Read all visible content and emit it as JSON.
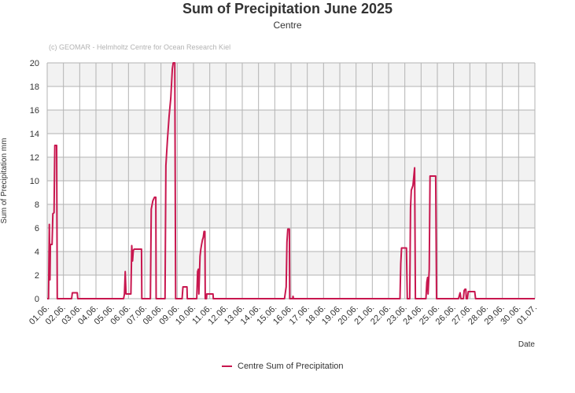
{
  "title": "Sum of Precipitation June 2025",
  "subtitle": "Centre",
  "copyright": "(c) GEOMAR - Helmholtz Centre for Ocean Research Kiel",
  "colors": {
    "series": "#c8174f",
    "band": "#f2f2f2",
    "grid": "#b3b3b3",
    "text": "#333333"
  },
  "chart_data": {
    "type": "line",
    "title": "Sum of Precipitation June 2025",
    "subtitle": "Centre",
    "xlabel": "Date",
    "ylabel": "Sum of Precipitation mm",
    "ylim": [
      0,
      20
    ],
    "yticks": [
      0,
      2,
      4,
      6,
      8,
      10,
      12,
      14,
      16,
      18,
      20
    ],
    "xlim": [
      0,
      30
    ],
    "xticks": [
      "01.06.",
      "02.06.",
      "03.06.",
      "04.06.",
      "05.06.",
      "06.06.",
      "07.06.",
      "08.06.",
      "09.06.",
      "10.06.",
      "11.06.",
      "12.06.",
      "13.06.",
      "14.06.",
      "15.06.",
      "16.06.",
      "17.06.",
      "18.06.",
      "19.06.",
      "20.06.",
      "21.06.",
      "22.06.",
      "23.06.",
      "24.06.",
      "25.06.",
      "26.06.",
      "27.06.",
      "28.06.",
      "29.06.",
      "30.06.",
      "01.07."
    ],
    "legend": "bottom-center",
    "series": [
      {
        "name": "Centre Sum of Precipitation",
        "x_unit": "days since 01.06. 00:00",
        "points": [
          [
            0.0,
            0
          ],
          [
            0.08,
            0
          ],
          [
            0.13,
            6.3
          ],
          [
            0.17,
            1.6
          ],
          [
            0.2,
            4.6
          ],
          [
            0.3,
            4.6
          ],
          [
            0.35,
            7.2
          ],
          [
            0.42,
            7.3
          ],
          [
            0.47,
            13.0
          ],
          [
            0.58,
            13.0
          ],
          [
            0.62,
            0
          ],
          [
            1.5,
            0
          ],
          [
            1.55,
            0.5
          ],
          [
            1.85,
            0.5
          ],
          [
            1.88,
            0
          ],
          [
            4.7,
            0
          ],
          [
            4.75,
            0.4
          ],
          [
            4.8,
            2.3
          ],
          [
            4.85,
            0.4
          ],
          [
            5.15,
            0.4
          ],
          [
            5.2,
            4.5
          ],
          [
            5.25,
            3.2
          ],
          [
            5.3,
            4.1
          ],
          [
            5.35,
            4.2
          ],
          [
            5.8,
            4.2
          ],
          [
            5.82,
            0
          ],
          [
            6.35,
            0
          ],
          [
            6.4,
            7.6
          ],
          [
            6.5,
            8.3
          ],
          [
            6.6,
            8.6
          ],
          [
            6.68,
            8.6
          ],
          [
            6.7,
            0
          ],
          [
            7.25,
            0
          ],
          [
            7.3,
            11.3
          ],
          [
            7.4,
            13.5
          ],
          [
            7.5,
            15.5
          ],
          [
            7.6,
            17.0
          ],
          [
            7.7,
            19.5
          ],
          [
            7.75,
            20.0
          ],
          [
            7.85,
            20.0
          ],
          [
            7.9,
            0
          ],
          [
            8.3,
            0
          ],
          [
            8.35,
            1.0
          ],
          [
            8.6,
            1.0
          ],
          [
            8.62,
            0
          ],
          [
            9.2,
            0
          ],
          [
            9.25,
            2.3
          ],
          [
            9.3,
            2.5
          ],
          [
            9.33,
            0.4
          ],
          [
            9.4,
            3.6
          ],
          [
            9.45,
            4.2
          ],
          [
            9.5,
            4.6
          ],
          [
            9.55,
            5.0
          ],
          [
            9.6,
            5.2
          ],
          [
            9.65,
            5.7
          ],
          [
            9.7,
            5.7
          ],
          [
            9.72,
            0
          ],
          [
            9.8,
            0
          ],
          [
            9.82,
            0.4
          ],
          [
            10.2,
            0.4
          ],
          [
            10.22,
            0
          ],
          [
            14.6,
            0
          ],
          [
            14.7,
            1.0
          ],
          [
            14.75,
            4.8
          ],
          [
            14.8,
            5.9
          ],
          [
            14.9,
            5.9
          ],
          [
            14.92,
            0
          ],
          [
            15.1,
            0
          ],
          [
            15.12,
            0.2
          ],
          [
            15.15,
            0
          ],
          [
            21.7,
            0
          ],
          [
            21.75,
            3.0
          ],
          [
            21.8,
            4.3
          ],
          [
            22.1,
            4.3
          ],
          [
            22.15,
            0
          ],
          [
            22.3,
            0
          ],
          [
            22.35,
            7.7
          ],
          [
            22.4,
            9.2
          ],
          [
            22.5,
            9.6
          ],
          [
            22.6,
            11.1
          ],
          [
            22.65,
            0
          ],
          [
            23.3,
            0
          ],
          [
            23.35,
            1.4
          ],
          [
            23.4,
            1.8
          ],
          [
            23.43,
            0.4
          ],
          [
            23.5,
            2.5
          ],
          [
            23.55,
            10.4
          ],
          [
            23.9,
            10.4
          ],
          [
            23.95,
            0
          ],
          [
            25.3,
            0
          ],
          [
            25.4,
            0.5
          ],
          [
            25.45,
            0
          ],
          [
            25.6,
            0
          ],
          [
            25.65,
            0.7
          ],
          [
            25.7,
            0.8
          ],
          [
            25.75,
            0.8
          ],
          [
            25.78,
            0
          ],
          [
            25.85,
            0
          ],
          [
            25.9,
            0.6
          ],
          [
            26.3,
            0.6
          ],
          [
            26.35,
            0
          ],
          [
            30.0,
            0
          ]
        ]
      }
    ]
  }
}
